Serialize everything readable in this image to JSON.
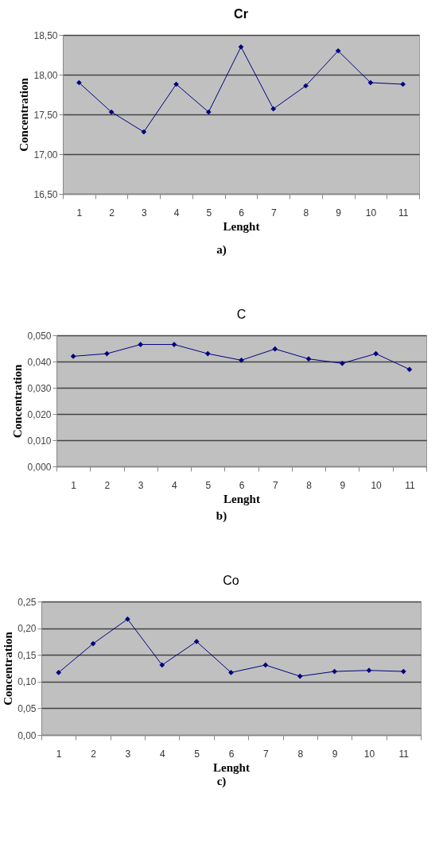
{
  "chart_data": [
    {
      "type": "line",
      "title": "Cr",
      "xlabel": "Lenght",
      "ylabel": "Concentration",
      "categories": [
        "1",
        "2",
        "3",
        "4",
        "5",
        "6",
        "7",
        "8",
        "9",
        "10",
        "11"
      ],
      "values": [
        17.9,
        17.53,
        17.28,
        17.88,
        17.53,
        18.35,
        17.57,
        17.86,
        18.3,
        17.9,
        17.88
      ],
      "color": "#00007f",
      "ylim": [
        16.5,
        18.5
      ],
      "yticks": [
        {
          "value": 16.5,
          "label": "16,50"
        },
        {
          "value": 17,
          "label": "17,00"
        },
        {
          "value": 17.5,
          "label": "17,50"
        },
        {
          "value": 18,
          "label": "18,00"
        },
        {
          "value": 18.5,
          "label": "18,50"
        }
      ],
      "grid": "y",
      "marker": "diamond",
      "annotations": [
        "a)"
      ]
    },
    {
      "type": "line",
      "title": "C",
      "xlabel": "Lenght",
      "ylabel": "Concentration",
      "categories": [
        "1",
        "2",
        "3",
        "4",
        "5",
        "6",
        "7",
        "8",
        "9",
        "10",
        "11"
      ],
      "values": [
        0.042,
        0.043,
        0.0465,
        0.0465,
        0.043,
        0.0405,
        0.0448,
        0.041,
        0.0393,
        0.043,
        0.037
      ],
      "color": "#00007f",
      "ylim": [
        0,
        0.05
      ],
      "yticks": [
        {
          "value": 0,
          "label": "0,000"
        },
        {
          "value": 0.01,
          "label": "0,010"
        },
        {
          "value": 0.02,
          "label": "0,020"
        },
        {
          "value": 0.03,
          "label": "0,030"
        },
        {
          "value": 0.04,
          "label": "0,040"
        },
        {
          "value": 0.05,
          "label": "0,050"
        }
      ],
      "grid": "y",
      "marker": "diamond",
      "annotations": [
        "b)"
      ]
    },
    {
      "type": "line",
      "title": "Co",
      "xlabel": "Lenght",
      "ylabel": "Concentration",
      "categories": [
        "1",
        "2",
        "3",
        "4",
        "5",
        "6",
        "7",
        "8",
        "9",
        "10",
        "11"
      ],
      "values": [
        0.117,
        0.171,
        0.217,
        0.131,
        0.175,
        0.117,
        0.131,
        0.11,
        0.119,
        0.121,
        0.119
      ],
      "color": "#00007f",
      "ylim": [
        0,
        0.25
      ],
      "yticks": [
        {
          "value": 0,
          "label": "0,00"
        },
        {
          "value": 0.05,
          "label": "0,05"
        },
        {
          "value": 0.1,
          "label": "0,10"
        },
        {
          "value": 0.15,
          "label": "0,15"
        },
        {
          "value": 0.2,
          "label": "0,20"
        },
        {
          "value": 0.25,
          "label": "0,25"
        }
      ],
      "grid": "y",
      "marker": "diamond",
      "annotations": [
        "c)"
      ]
    }
  ]
}
